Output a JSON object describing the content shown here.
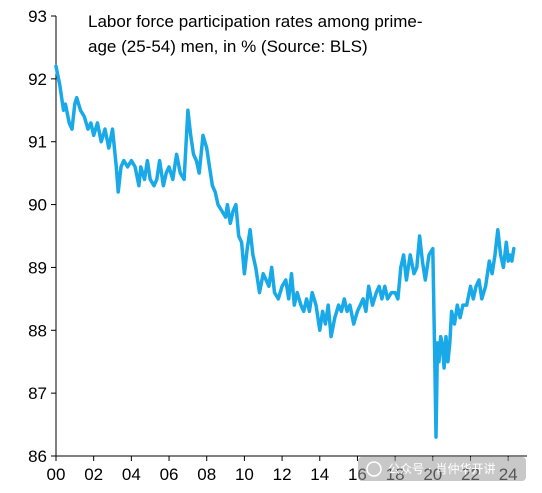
{
  "chart_data": {
    "type": "line",
    "title_lines": [
      "Labor force participation rates among prime-",
      "age (25-54) men, in % (Source: BLS)"
    ],
    "xlabel": "",
    "ylabel": "",
    "x_ticks": [
      "00",
      "02",
      "04",
      "06",
      "08",
      "10",
      "12",
      "14",
      "16",
      "18",
      "20",
      "22",
      "24"
    ],
    "y_ticks": [
      "93",
      "92",
      "91",
      "90",
      "89",
      "88",
      "87",
      "86"
    ],
    "xlim": [
      2000,
      2025
    ],
    "ylim": [
      86,
      93
    ],
    "grid": false,
    "legend": "none",
    "line_color": "#19a9e8",
    "series": [
      {
        "x": [
          2000.0,
          2000.2,
          2000.4,
          2000.5,
          2000.7,
          2000.85,
          2001.0,
          2001.1,
          2001.3,
          2001.5,
          2001.7,
          2001.85,
          2002.0,
          2002.2,
          2002.4,
          2002.6,
          2002.8,
          2003.0,
          2003.2,
          2003.3,
          2003.45,
          2003.6,
          2003.8,
          2004.0,
          2004.2,
          2004.4,
          2004.5,
          2004.7,
          2004.85,
          2005.0,
          2005.2,
          2005.35,
          2005.5,
          2005.7,
          2005.85,
          2006.0,
          2006.2,
          2006.4,
          2006.6,
          2006.8,
          2007.0,
          2007.15,
          2007.3,
          2007.45,
          2007.6,
          2007.8,
          2008.0,
          2008.15,
          2008.3,
          2008.45,
          2008.6,
          2008.8,
          2009.0,
          2009.1,
          2009.25,
          2009.4,
          2009.55,
          2009.7,
          2009.85,
          2010.0,
          2010.15,
          2010.3,
          2010.45,
          2010.6,
          2010.8,
          2011.0,
          2011.15,
          2011.3,
          2011.45,
          2011.6,
          2011.8,
          2012.0,
          2012.2,
          2012.35,
          2012.5,
          2012.65,
          2012.8,
          2013.0,
          2013.15,
          2013.3,
          2013.45,
          2013.6,
          2013.8,
          2014.0,
          2014.15,
          2014.3,
          2014.45,
          2014.6,
          2014.8,
          2015.0,
          2015.15,
          2015.3,
          2015.45,
          2015.6,
          2015.8,
          2016.0,
          2016.15,
          2016.3,
          2016.45,
          2016.6,
          2016.8,
          2017.0,
          2017.15,
          2017.3,
          2017.45,
          2017.6,
          2017.8,
          2018.0,
          2018.15,
          2018.3,
          2018.45,
          2018.6,
          2018.8,
          2019.0,
          2019.15,
          2019.3,
          2019.45,
          2019.6,
          2019.8,
          2020.0,
          2020.1,
          2020.17,
          2020.25,
          2020.33,
          2020.42,
          2020.5,
          2020.6,
          2020.7,
          2020.8,
          2020.9,
          2021.0,
          2021.15,
          2021.3,
          2021.45,
          2021.6,
          2021.8,
          2022.0,
          2022.15,
          2022.3,
          2022.45,
          2022.6,
          2022.8,
          2023.0,
          2023.15,
          2023.3,
          2023.45,
          2023.6,
          2023.75,
          2023.9,
          2024.0,
          2024.1,
          2024.2,
          2024.3
        ],
        "y": [
          92.2,
          91.9,
          91.5,
          91.6,
          91.3,
          91.2,
          91.6,
          91.7,
          91.5,
          91.4,
          91.2,
          91.3,
          91.1,
          91.3,
          91.0,
          91.2,
          90.9,
          91.2,
          90.6,
          90.2,
          90.6,
          90.7,
          90.6,
          90.7,
          90.6,
          90.3,
          90.6,
          90.4,
          90.7,
          90.4,
          90.3,
          90.4,
          90.7,
          90.3,
          90.5,
          90.6,
          90.4,
          90.8,
          90.5,
          90.4,
          91.5,
          91.1,
          90.8,
          90.7,
          90.5,
          91.1,
          90.9,
          90.6,
          90.3,
          90.2,
          90.0,
          89.9,
          89.8,
          90.0,
          89.7,
          89.9,
          90.0,
          89.5,
          89.4,
          88.9,
          89.3,
          89.6,
          89.2,
          89.0,
          88.6,
          88.9,
          88.8,
          88.7,
          89.0,
          88.6,
          88.5,
          88.7,
          88.8,
          88.5,
          88.9,
          88.4,
          88.6,
          88.4,
          88.3,
          88.5,
          88.3,
          88.6,
          88.4,
          88.0,
          88.3,
          88.1,
          88.4,
          87.9,
          88.2,
          88.4,
          88.3,
          88.5,
          88.3,
          88.4,
          88.1,
          88.3,
          88.4,
          88.5,
          88.3,
          88.7,
          88.4,
          88.6,
          88.7,
          88.5,
          88.7,
          88.5,
          88.6,
          88.6,
          88.5,
          89.0,
          89.2,
          88.8,
          89.2,
          88.9,
          89.0,
          89.5,
          89.1,
          88.8,
          89.2,
          89.3,
          87.6,
          86.3,
          87.8,
          87.5,
          87.9,
          87.8,
          87.4,
          87.9,
          87.5,
          87.8,
          88.3,
          88.1,
          88.4,
          88.2,
          88.4,
          88.4,
          88.7,
          88.5,
          88.7,
          88.8,
          88.5,
          88.7,
          89.1,
          88.9,
          89.2,
          89.6,
          89.2,
          89.0,
          89.4,
          89.1,
          89.2,
          89.1,
          89.3
        ]
      }
    ]
  },
  "watermark": "公众号 · 肖仲华开讲"
}
